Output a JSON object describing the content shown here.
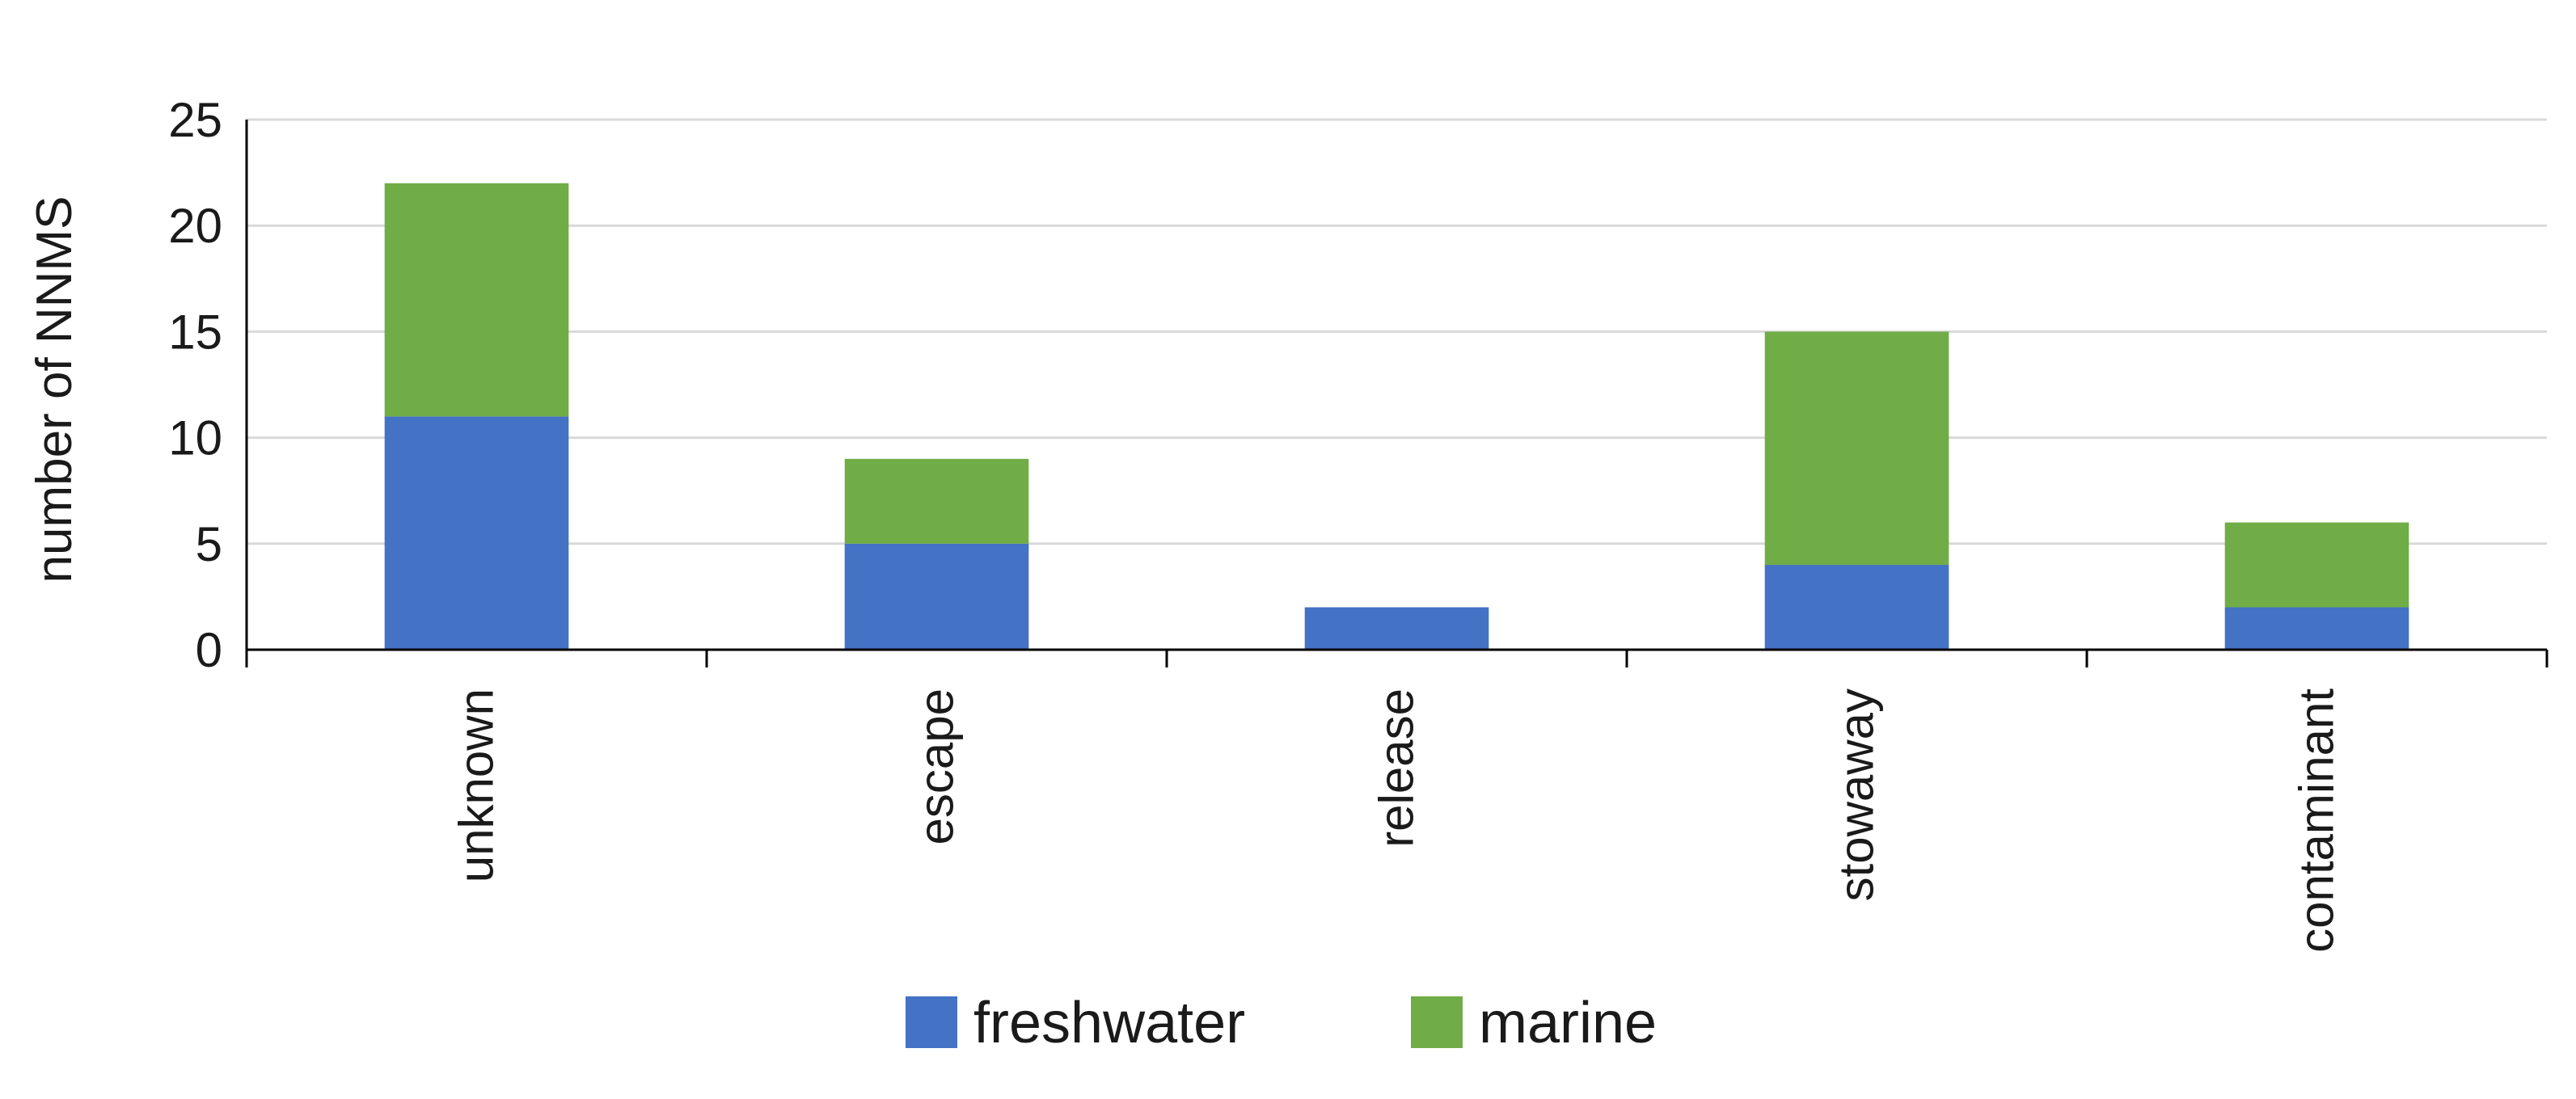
{
  "chart_data": {
    "type": "bar",
    "stacked": true,
    "categories": [
      "unknown",
      "escape",
      "release",
      "stowaway",
      "contaminant"
    ],
    "series": [
      {
        "name": "freshwater",
        "values": [
          11,
          5,
          2,
          4,
          2
        ],
        "color": "#4472c4"
      },
      {
        "name": "marine",
        "values": [
          11,
          4,
          0,
          11,
          4
        ],
        "color": "#70ad47"
      }
    ],
    "title": "",
    "xlabel": "",
    "ylabel": "number of NNMS",
    "ylim": [
      0,
      25
    ],
    "yticks": [
      0,
      5,
      10,
      15,
      20,
      25
    ],
    "grid": true,
    "legend_position": "bottom"
  }
}
